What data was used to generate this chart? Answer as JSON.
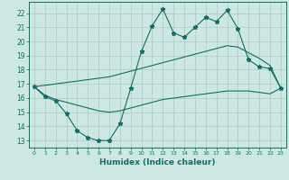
{
  "xlabel": "Humidex (Indice chaleur)",
  "xlim": [
    -0.5,
    23.5
  ],
  "ylim": [
    12.5,
    22.8
  ],
  "yticks": [
    13,
    14,
    15,
    16,
    17,
    18,
    19,
    20,
    21,
    22
  ],
  "xticks": [
    0,
    1,
    2,
    3,
    4,
    5,
    6,
    7,
    8,
    9,
    10,
    11,
    12,
    13,
    14,
    15,
    16,
    17,
    18,
    19,
    20,
    21,
    22,
    23
  ],
  "xtick_labels": [
    "0",
    "1",
    "2",
    "3",
    "4",
    "5",
    "6",
    "7",
    "8",
    "9",
    "10",
    "11",
    "12",
    "13",
    "14",
    "15",
    "16",
    "17",
    "18",
    "19",
    "20",
    "21",
    "22",
    "23"
  ],
  "bg_color": "#cce8e4",
  "line_color": "#1a6b5a",
  "grid_color": "#b0c8c4",
  "line1_x": [
    0,
    1,
    2,
    3,
    4,
    5,
    6,
    7,
    8,
    9,
    10,
    11,
    12,
    13,
    14,
    15,
    16,
    17,
    18,
    19,
    20,
    21,
    22,
    23
  ],
  "line1_y": [
    16.8,
    16.1,
    15.8,
    14.9,
    13.7,
    13.2,
    13.0,
    13.0,
    14.2,
    16.7,
    19.3,
    21.1,
    22.3,
    20.6,
    20.3,
    21.0,
    21.7,
    21.4,
    22.2,
    20.9,
    18.7,
    18.2,
    18.1,
    16.7
  ],
  "line2_x": [
    0,
    1,
    2,
    3,
    4,
    5,
    6,
    7,
    8,
    9,
    10,
    11,
    12,
    13,
    14,
    15,
    16,
    17,
    18,
    19,
    20,
    21,
    22,
    23
  ],
  "line2_y": [
    16.8,
    16.9,
    17.0,
    17.1,
    17.2,
    17.3,
    17.4,
    17.5,
    17.7,
    17.9,
    18.1,
    18.3,
    18.5,
    18.7,
    18.9,
    19.1,
    19.3,
    19.5,
    19.7,
    19.6,
    19.2,
    18.8,
    18.3,
    16.7
  ],
  "line3_x": [
    0,
    1,
    2,
    3,
    4,
    5,
    6,
    7,
    8,
    9,
    10,
    11,
    12,
    13,
    14,
    15,
    16,
    17,
    18,
    19,
    20,
    21,
    22,
    23
  ],
  "line3_y": [
    16.8,
    16.2,
    15.9,
    15.7,
    15.5,
    15.3,
    15.1,
    15.0,
    15.1,
    15.3,
    15.5,
    15.7,
    15.9,
    16.0,
    16.1,
    16.2,
    16.3,
    16.4,
    16.5,
    16.5,
    16.5,
    16.4,
    16.3,
    16.7
  ]
}
